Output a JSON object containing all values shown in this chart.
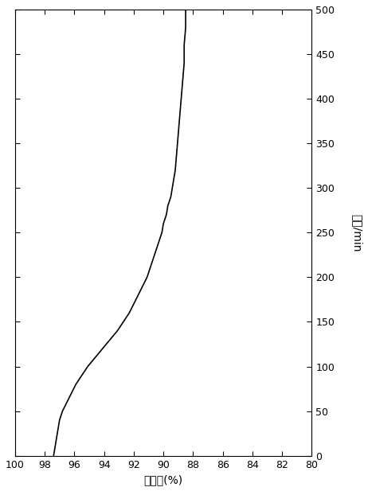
{
  "time": [
    0,
    10,
    20,
    30,
    40,
    50,
    60,
    70,
    80,
    90,
    100,
    110,
    120,
    130,
    140,
    150,
    160,
    170,
    180,
    190,
    200,
    210,
    220,
    230,
    240,
    250,
    260,
    270,
    280,
    290,
    300,
    320,
    340,
    360,
    380,
    400,
    420,
    440,
    460,
    480,
    500
  ],
  "removal": [
    97.4,
    97.3,
    97.2,
    97.1,
    97.0,
    96.8,
    96.5,
    96.2,
    95.9,
    95.5,
    95.1,
    94.6,
    94.1,
    93.6,
    93.1,
    92.7,
    92.3,
    92.0,
    91.7,
    91.4,
    91.1,
    90.9,
    90.7,
    90.5,
    90.3,
    90.1,
    90.0,
    89.8,
    89.7,
    89.5,
    89.4,
    89.2,
    89.1,
    89.0,
    88.9,
    88.8,
    88.7,
    88.6,
    88.6,
    88.5,
    88.5
  ],
  "time_lim": [
    0,
    500
  ],
  "removal_lim": [
    80,
    100
  ],
  "time_ticks": [
    0,
    50,
    100,
    150,
    200,
    250,
    300,
    350,
    400,
    450,
    500
  ],
  "removal_ticks": [
    80,
    82,
    84,
    86,
    88,
    90,
    92,
    94,
    96,
    98,
    100
  ],
  "xlabel_time": "时间/min",
  "ylabel_removal": "脱汞率(%)",
  "line_color": "#000000",
  "line_width": 1.2,
  "bg_color": "#ffffff",
  "tick_fontsize": 9,
  "label_fontsize": 10
}
